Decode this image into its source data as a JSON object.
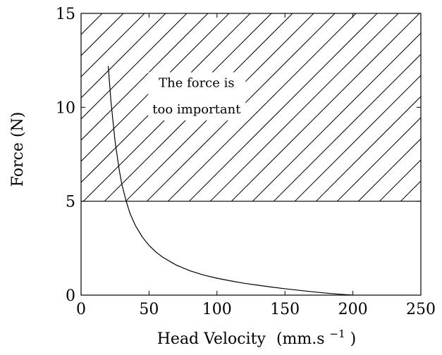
{
  "chart_data": {
    "type": "line",
    "title": "",
    "xlabel": "Head Velocity",
    "xlabel_unit": "(mm.s",
    "xlabel_unit_exponent": "−1",
    "xlabel_unit_close": ")",
    "ylabel": "Force (N)",
    "xlim": [
      0,
      250
    ],
    "ylim": [
      0,
      15
    ],
    "xticks": [
      0,
      50,
      100,
      150,
      200,
      250
    ],
    "yticks": [
      0,
      5,
      10,
      15
    ],
    "grid": false,
    "series": [
      {
        "x": [
          20,
          22,
          25,
          28,
          30,
          33,
          36,
          40,
          45,
          50,
          55,
          60,
          70,
          80,
          90,
          100,
          110,
          120,
          130,
          140,
          150,
          160,
          170,
          180,
          190,
          200
        ],
        "y": [
          12.2,
          10.3,
          8.2,
          6.7,
          5.9,
          5.05,
          4.35,
          3.7,
          3.1,
          2.65,
          2.3,
          2.02,
          1.6,
          1.3,
          1.07,
          0.9,
          0.76,
          0.63,
          0.53,
          0.43,
          0.34,
          0.26,
          0.18,
          0.11,
          0.05,
          0.0
        ]
      }
    ],
    "region": {
      "y_min": 5,
      "y_max": 15,
      "fill": "hatched",
      "label_lines": [
        "The force is",
        "too important"
      ],
      "label_x": 85,
      "label_y_top": 11.3,
      "label_y_bottom": 9.9
    }
  }
}
